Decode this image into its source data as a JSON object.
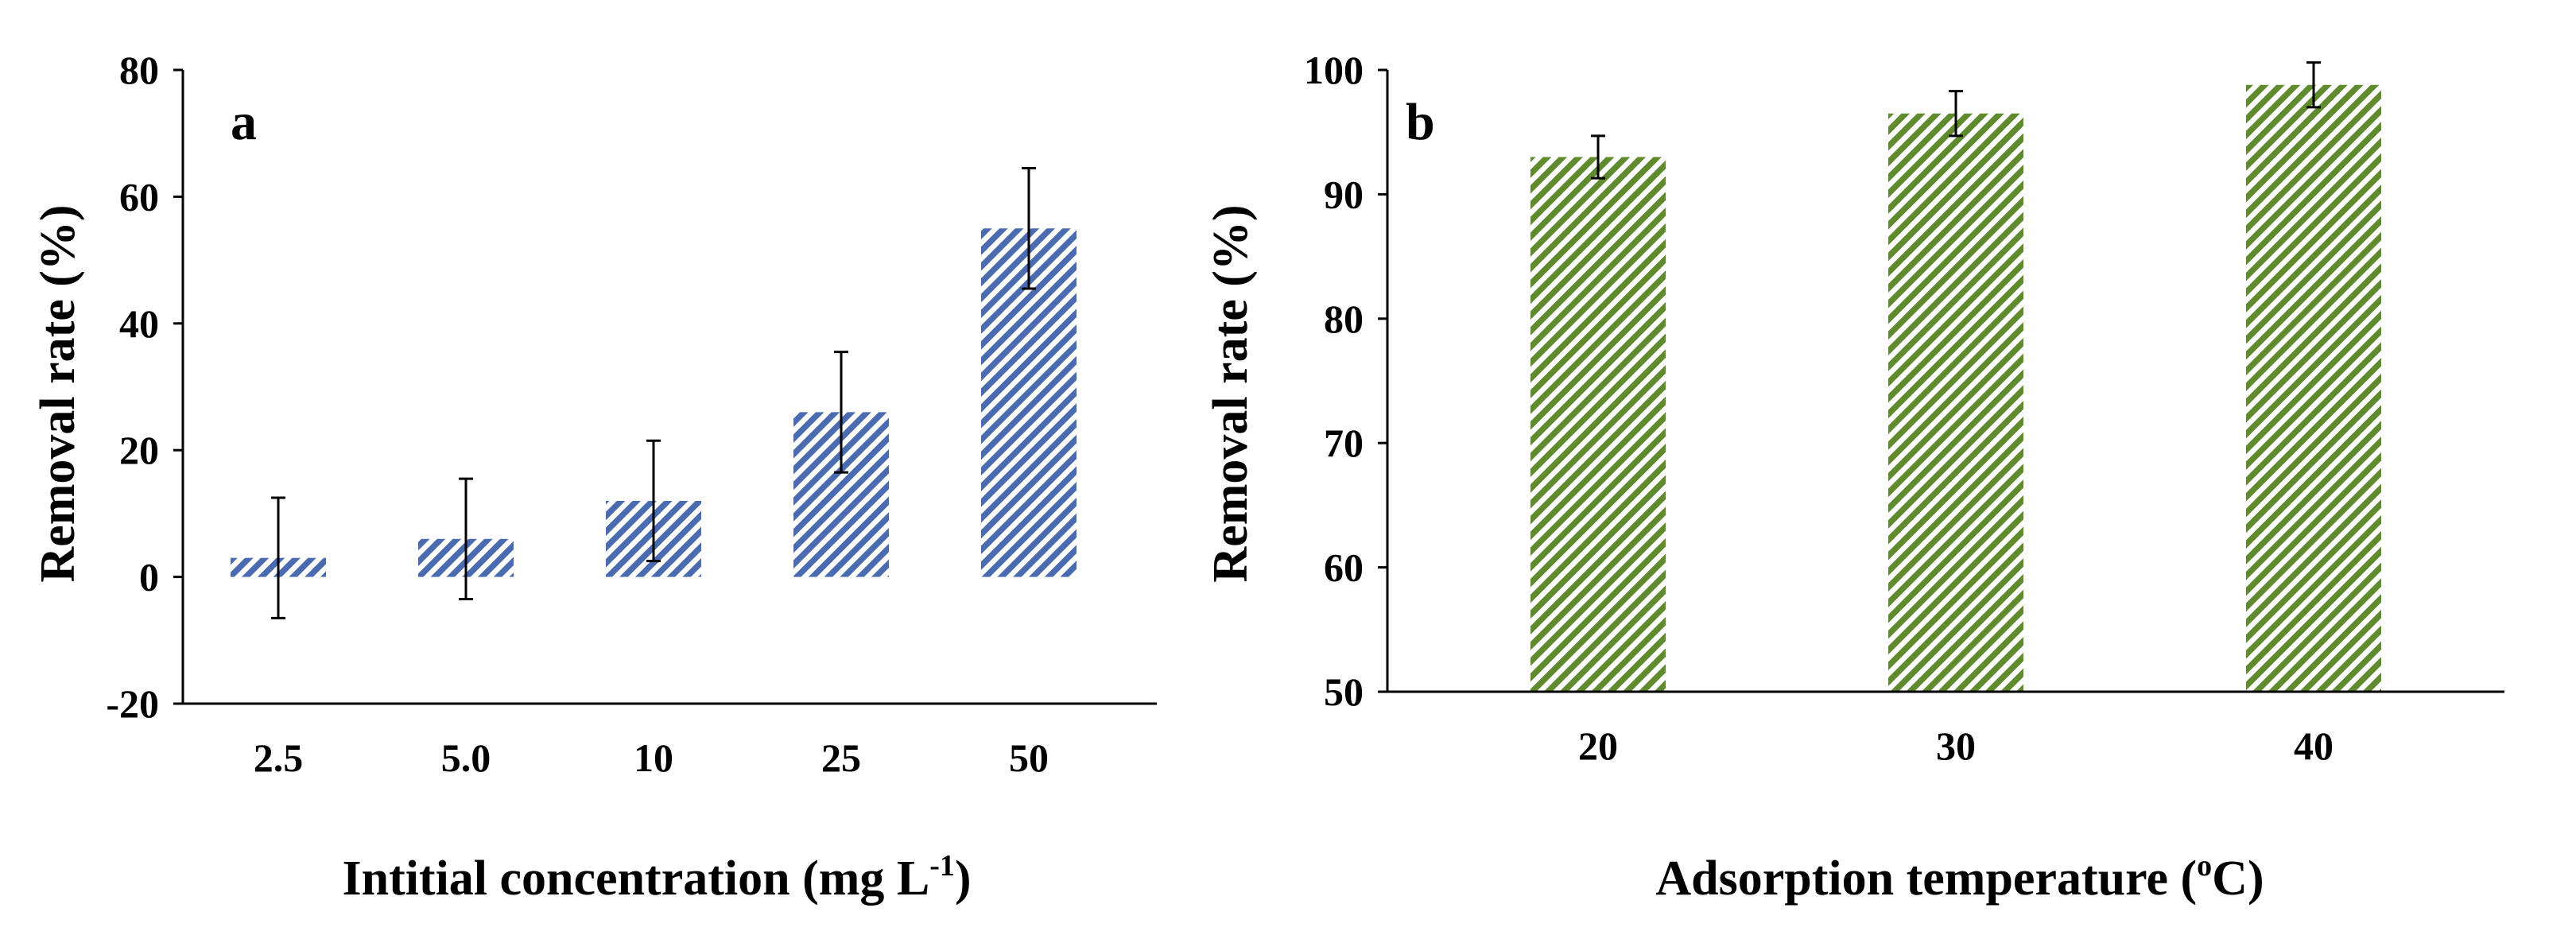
{
  "chart_data": [
    {
      "type": "bar",
      "panel_label": "a",
      "categories": [
        "2.5",
        "5.0",
        "10",
        "25",
        "50"
      ],
      "values": [
        3,
        6,
        12,
        26,
        55
      ],
      "errors": [
        9.5,
        9.5,
        9.5,
        9.5,
        9.5
      ],
      "xlabel": "Intitial concentration (mg L",
      "xlabel_sup": "-1",
      "xlabel_end": ")",
      "ylabel": "Removal rate (%)",
      "ylim": [
        -20,
        80
      ],
      "yticks": [
        "-20",
        "0",
        "20",
        "40",
        "60",
        "80"
      ],
      "bar_color": "#4a6bb0",
      "pattern": "diagonal-hatch",
      "grid": false,
      "legend": "none"
    },
    {
      "type": "bar",
      "panel_label": "b",
      "categories": [
        "20",
        "30",
        "40"
      ],
      "values": [
        93,
        96.5,
        98.8
      ],
      "errors": [
        1.7,
        1.8,
        1.8
      ],
      "xlabel": "Adsorption temperature (",
      "xlabel_sup": "o",
      "xlabel_end": "C)",
      "ylabel": "Removal rate (%)",
      "ylim": [
        50,
        100
      ],
      "yticks": [
        "50",
        "60",
        "70",
        "80",
        "90",
        "100"
      ],
      "bar_color": "#5f8a2e",
      "pattern": "diagonal-hatch",
      "grid": false,
      "legend": "none"
    }
  ]
}
